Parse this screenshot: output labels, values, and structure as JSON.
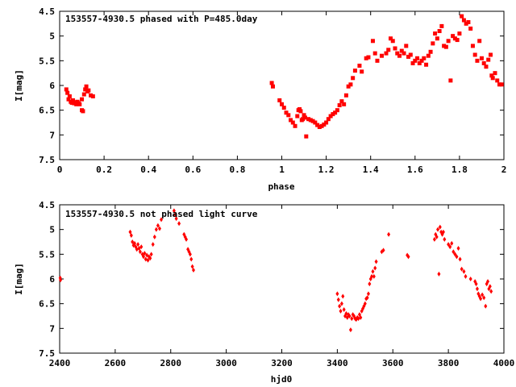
{
  "chart_data": [
    {
      "type": "scatter",
      "title": "153557-4930.5 phased with P=485.0day",
      "xlabel": "phase",
      "ylabel": "I[mag]",
      "xlim": [
        0,
        2
      ],
      "ylim": [
        4.5,
        7.5
      ],
      "y_inverted": true,
      "grid": false,
      "marker": "filled-square",
      "color": "#ff0000",
      "x_ticks": [
        "0",
        "0.2",
        "0.4",
        "0.6",
        "0.8",
        "1",
        "1.2",
        "1.4",
        "1.6",
        "1.8",
        "2"
      ],
      "y_ticks": [
        "4.5",
        "5",
        "5.5",
        "6",
        "6.5",
        "7",
        "7.5"
      ],
      "points": [
        [
          0.03,
          6.08
        ],
        [
          0.035,
          6.15
        ],
        [
          0.04,
          6.28
        ],
        [
          0.045,
          6.22
        ],
        [
          0.05,
          6.33
        ],
        [
          0.055,
          6.35
        ],
        [
          0.06,
          6.3
        ],
        [
          0.065,
          6.36
        ],
        [
          0.07,
          6.34
        ],
        [
          0.075,
          6.38
        ],
        [
          0.08,
          6.33
        ],
        [
          0.085,
          6.36
        ],
        [
          0.09,
          6.38
        ],
        [
          0.1,
          6.28
        ],
        [
          0.1,
          6.5
        ],
        [
          0.105,
          6.52
        ],
        [
          0.11,
          6.18
        ],
        [
          0.115,
          6.08
        ],
        [
          0.12,
          6.02
        ],
        [
          0.125,
          6.12
        ],
        [
          0.13,
          6.1
        ],
        [
          0.14,
          6.2
        ],
        [
          0.15,
          6.22
        ],
        [
          0.955,
          5.95
        ],
        [
          0.96,
          6.02
        ],
        [
          0.99,
          6.3
        ],
        [
          1.0,
          6.38
        ],
        [
          1.01,
          6.45
        ],
        [
          1.02,
          6.55
        ],
        [
          1.03,
          6.6
        ],
        [
          1.04,
          6.7
        ],
        [
          1.05,
          6.75
        ],
        [
          1.06,
          6.82
        ],
        [
          1.07,
          6.62
        ],
        [
          1.075,
          6.5
        ],
        [
          1.08,
          6.48
        ],
        [
          1.085,
          6.52
        ],
        [
          1.09,
          6.7
        ],
        [
          1.095,
          6.68
        ],
        [
          1.1,
          6.6
        ],
        [
          1.105,
          6.65
        ],
        [
          1.11,
          7.03
        ],
        [
          1.12,
          6.68
        ],
        [
          1.13,
          6.7
        ],
        [
          1.14,
          6.72
        ],
        [
          1.15,
          6.75
        ],
        [
          1.16,
          6.8
        ],
        [
          1.17,
          6.84
        ],
        [
          1.18,
          6.82
        ],
        [
          1.19,
          6.79
        ],
        [
          1.2,
          6.75
        ],
        [
          1.21,
          6.68
        ],
        [
          1.22,
          6.62
        ],
        [
          1.23,
          6.58
        ],
        [
          1.24,
          6.55
        ],
        [
          1.25,
          6.5
        ],
        [
          1.26,
          6.4
        ],
        [
          1.27,
          6.32
        ],
        [
          1.28,
          6.38
        ],
        [
          1.29,
          6.2
        ],
        [
          1.3,
          6.02
        ],
        [
          1.31,
          5.98
        ],
        [
          1.32,
          5.85
        ],
        [
          1.33,
          5.7
        ],
        [
          1.35,
          5.6
        ],
        [
          1.36,
          5.72
        ],
        [
          1.38,
          5.45
        ],
        [
          1.39,
          5.43
        ],
        [
          1.41,
          5.1
        ],
        [
          1.42,
          5.35
        ],
        [
          1.43,
          5.5
        ],
        [
          1.45,
          5.4
        ],
        [
          1.47,
          5.35
        ],
        [
          1.48,
          5.28
        ],
        [
          1.49,
          5.05
        ],
        [
          1.5,
          5.1
        ],
        [
          1.51,
          5.25
        ],
        [
          1.52,
          5.35
        ],
        [
          1.53,
          5.4
        ],
        [
          1.54,
          5.3
        ],
        [
          1.55,
          5.35
        ],
        [
          1.56,
          5.2
        ],
        [
          1.57,
          5.42
        ],
        [
          1.58,
          5.38
        ],
        [
          1.59,
          5.55
        ],
        [
          1.6,
          5.5
        ],
        [
          1.61,
          5.45
        ],
        [
          1.62,
          5.55
        ],
        [
          1.63,
          5.5
        ],
        [
          1.64,
          5.45
        ],
        [
          1.65,
          5.58
        ],
        [
          1.66,
          5.4
        ],
        [
          1.67,
          5.32
        ],
        [
          1.68,
          5.15
        ],
        [
          1.69,
          4.95
        ],
        [
          1.7,
          5.05
        ],
        [
          1.71,
          4.9
        ],
        [
          1.72,
          4.8
        ],
        [
          1.73,
          5.2
        ],
        [
          1.74,
          5.22
        ],
        [
          1.75,
          5.1
        ],
        [
          1.76,
          5.9
        ],
        [
          1.77,
          5.0
        ],
        [
          1.78,
          5.05
        ],
        [
          1.79,
          5.08
        ],
        [
          1.8,
          4.95
        ],
        [
          1.81,
          4.6
        ],
        [
          1.82,
          4.68
        ],
        [
          1.83,
          4.75
        ],
        [
          1.84,
          4.72
        ],
        [
          1.85,
          4.85
        ],
        [
          1.86,
          5.2
        ],
        [
          1.87,
          5.38
        ],
        [
          1.88,
          5.5
        ],
        [
          1.89,
          5.1
        ],
        [
          1.9,
          5.45
        ],
        [
          1.91,
          5.55
        ],
        [
          1.92,
          5.62
        ],
        [
          1.93,
          5.48
        ],
        [
          1.94,
          5.38
        ],
        [
          1.945,
          5.8
        ],
        [
          1.95,
          5.85
        ],
        [
          1.96,
          5.75
        ],
        [
          1.97,
          5.9
        ],
        [
          1.98,
          5.98
        ],
        [
          1.99,
          5.98
        ]
      ]
    },
    {
      "type": "scatter",
      "title": "153557-4930.5 not phased light curve",
      "xlabel": "hjd0",
      "ylabel": "I[mag]",
      "xlim": [
        2400,
        4000
      ],
      "ylim": [
        4.5,
        7.5
      ],
      "y_inverted": true,
      "grid": false,
      "marker": "diamond",
      "color": "#ff0000",
      "x_ticks": [
        "2400",
        "2600",
        "2800",
        "3000",
        "3200",
        "3400",
        "3600",
        "3800",
        "4000"
      ],
      "y_ticks": [
        "4.5",
        "5",
        "5.5",
        "6",
        "6.5",
        "7",
        "7.5"
      ],
      "points": [
        [
          2402,
          5.98
        ],
        [
          2403,
          6.02
        ],
        [
          2654,
          5.05
        ],
        [
          2658,
          5.12
        ],
        [
          2662,
          5.25
        ],
        [
          2666,
          5.32
        ],
        [
          2670,
          5.28
        ],
        [
          2674,
          5.35
        ],
        [
          2678,
          5.4
        ],
        [
          2682,
          5.3
        ],
        [
          2686,
          5.38
        ],
        [
          2690,
          5.45
        ],
        [
          2694,
          5.35
        ],
        [
          2698,
          5.5
        ],
        [
          2702,
          5.55
        ],
        [
          2706,
          5.48
        ],
        [
          2710,
          5.6
        ],
        [
          2714,
          5.52
        ],
        [
          2718,
          5.62
        ],
        [
          2722,
          5.55
        ],
        [
          2726,
          5.58
        ],
        [
          2730,
          5.5
        ],
        [
          2736,
          5.3
        ],
        [
          2742,
          5.15
        ],
        [
          2748,
          5.0
        ],
        [
          2754,
          4.92
        ],
        [
          2760,
          4.98
        ],
        [
          2766,
          4.8
        ],
        [
          2812,
          4.62
        ],
        [
          2816,
          4.7
        ],
        [
          2820,
          4.78
        ],
        [
          2830,
          4.88
        ],
        [
          2848,
          5.1
        ],
        [
          2852,
          5.15
        ],
        [
          2856,
          5.2
        ],
        [
          2862,
          5.4
        ],
        [
          2866,
          5.45
        ],
        [
          2870,
          5.5
        ],
        [
          2874,
          5.6
        ],
        [
          2878,
          5.75
        ],
        [
          2882,
          5.82
        ],
        [
          3400,
          6.3
        ],
        [
          3404,
          6.42
        ],
        [
          3408,
          6.55
        ],
        [
          3412,
          6.65
        ],
        [
          3416,
          6.5
        ],
        [
          3420,
          6.35
        ],
        [
          3424,
          6.62
        ],
        [
          3428,
          6.75
        ],
        [
          3432,
          6.7
        ],
        [
          3436,
          6.78
        ],
        [
          3440,
          6.72
        ],
        [
          3444,
          6.75
        ],
        [
          3448,
          7.03
        ],
        [
          3452,
          6.8
        ],
        [
          3456,
          6.72
        ],
        [
          3460,
          6.75
        ],
        [
          3464,
          6.8
        ],
        [
          3468,
          6.82
        ],
        [
          3472,
          6.78
        ],
        [
          3476,
          6.8
        ],
        [
          3480,
          6.72
        ],
        [
          3484,
          6.78
        ],
        [
          3488,
          6.65
        ],
        [
          3492,
          6.6
        ],
        [
          3496,
          6.55
        ],
        [
          3500,
          6.5
        ],
        [
          3504,
          6.4
        ],
        [
          3508,
          6.38
        ],
        [
          3512,
          6.3
        ],
        [
          3516,
          6.1
        ],
        [
          3520,
          6.0
        ],
        [
          3524,
          5.95
        ],
        [
          3528,
          5.85
        ],
        [
          3532,
          5.95
        ],
        [
          3536,
          5.78
        ],
        [
          3540,
          5.65
        ],
        [
          3560,
          5.45
        ],
        [
          3566,
          5.42
        ],
        [
          3585,
          5.1
        ],
        [
          3652,
          5.52
        ],
        [
          3656,
          5.55
        ],
        [
          3750,
          5.2
        ],
        [
          3754,
          5.1
        ],
        [
          3758,
          5.15
        ],
        [
          3762,
          5.0
        ],
        [
          3766,
          5.9
        ],
        [
          3770,
          4.95
        ],
        [
          3774,
          5.05
        ],
        [
          3778,
          5.1
        ],
        [
          3782,
          5.05
        ],
        [
          3786,
          5.2
        ],
        [
          3800,
          5.3
        ],
        [
          3806,
          5.35
        ],
        [
          3812,
          5.28
        ],
        [
          3818,
          5.45
        ],
        [
          3824,
          5.5
        ],
        [
          3830,
          5.55
        ],
        [
          3836,
          5.38
        ],
        [
          3842,
          5.6
        ],
        [
          3848,
          5.8
        ],
        [
          3856,
          5.85
        ],
        [
          3862,
          5.95
        ],
        [
          3880,
          6.0
        ],
        [
          3896,
          6.05
        ],
        [
          3900,
          6.1
        ],
        [
          3904,
          6.2
        ],
        [
          3908,
          6.3
        ],
        [
          3912,
          6.35
        ],
        [
          3916,
          6.4
        ],
        [
          3922,
          6.32
        ],
        [
          3928,
          6.38
        ],
        [
          3934,
          6.55
        ],
        [
          3938,
          6.1
        ],
        [
          3942,
          6.05
        ],
        [
          3946,
          6.2
        ],
        [
          3950,
          6.15
        ],
        [
          3954,
          6.25
        ]
      ]
    }
  ]
}
